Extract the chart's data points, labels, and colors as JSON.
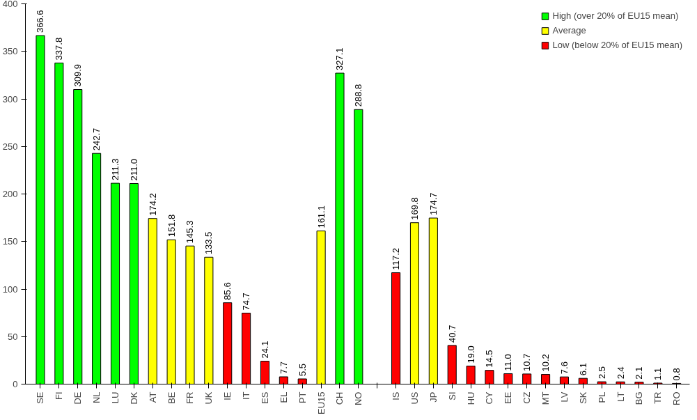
{
  "chart_data": {
    "type": "bar",
    "categories": [
      "SE",
      "FI",
      "DE",
      "NL",
      "LU",
      "DK",
      "AT",
      "BE",
      "FR",
      "UK",
      "IE",
      "IT",
      "ES",
      "EL",
      "PT",
      "EU15",
      "CH",
      "NO",
      null,
      "IS",
      "US",
      "JP",
      "SI",
      "HU",
      "CY",
      "EE",
      "CZ",
      "MT",
      "LV",
      "SK",
      "PL",
      "LT",
      "BG",
      "TR",
      "RO"
    ],
    "series": [
      {
        "name": "High (over 20% of EU15 mean)",
        "color": "#00ff00",
        "values": [
          366.6,
          337.8,
          309.9,
          242.7,
          211.3,
          211.0,
          null,
          null,
          null,
          null,
          null,
          null,
          null,
          null,
          null,
          null,
          327.1,
          288.8,
          null,
          null,
          null,
          null,
          null,
          null,
          null,
          null,
          null,
          null,
          null,
          null,
          null,
          null,
          null,
          null,
          null
        ],
        "value_labels": [
          "366.6",
          "337.8",
          "309.9",
          "242.7",
          "211.3",
          "211.0",
          null,
          null,
          null,
          null,
          null,
          null,
          null,
          null,
          null,
          null,
          "327.1",
          "288.8",
          null,
          null,
          null,
          null,
          null,
          null,
          null,
          null,
          null,
          null,
          null,
          null,
          null,
          null,
          null,
          null,
          null
        ]
      },
      {
        "name": "Average",
        "color": "#ffff00",
        "values": [
          null,
          null,
          null,
          null,
          null,
          null,
          174.2,
          151.8,
          145.3,
          133.5,
          null,
          null,
          null,
          null,
          null,
          161.1,
          null,
          null,
          null,
          null,
          169.8,
          174.7,
          null,
          null,
          null,
          null,
          null,
          null,
          null,
          null,
          null,
          null,
          null,
          null,
          null
        ],
        "value_labels": [
          null,
          null,
          null,
          null,
          null,
          null,
          "174.2",
          "151.8",
          "145.3",
          "133.5",
          null,
          null,
          null,
          null,
          null,
          "161.1",
          null,
          null,
          null,
          null,
          "169.8",
          "174.7",
          null,
          null,
          null,
          null,
          null,
          null,
          null,
          null,
          null,
          null,
          null,
          null,
          null
        ]
      },
      {
        "name": "Low (below 20% of EU15 mean)",
        "color": "#ff0000",
        "values": [
          null,
          null,
          null,
          null,
          null,
          null,
          null,
          null,
          null,
          null,
          85.6,
          74.7,
          24.1,
          7.7,
          5.5,
          null,
          null,
          null,
          null,
          117.2,
          null,
          null,
          40.7,
          19.0,
          14.5,
          11.0,
          10.7,
          10.2,
          7.6,
          6.1,
          2.5,
          2.4,
          2.1,
          1.1,
          0.8
        ],
        "value_labels": [
          null,
          null,
          null,
          null,
          null,
          null,
          null,
          null,
          null,
          null,
          "85.6",
          "74.7",
          "24.1",
          "7.7",
          "5.5",
          null,
          null,
          null,
          null,
          "117.2",
          null,
          null,
          "40.7",
          "19.0",
          "14.5",
          "11.0",
          "10.7",
          "10.2",
          "7.6",
          "6.1",
          "2.5",
          "2.4",
          "2.1",
          "1.1",
          "0.8"
        ]
      }
    ],
    "ylim": [
      0,
      400
    ],
    "yticks": [
      0,
      50,
      100,
      150,
      200,
      250,
      300,
      350,
      400
    ],
    "legend": "top right"
  }
}
